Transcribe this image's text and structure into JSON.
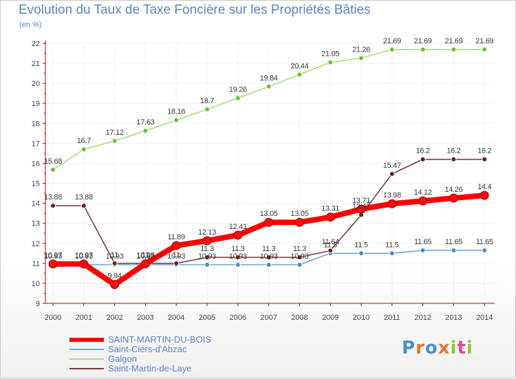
{
  "title": "Evolution du Taux de Taxe Foncière sur les Propriétés Bâties",
  "unit_label": "(en %)",
  "brand": {
    "text": "Proxiti",
    "letters": [
      "P",
      "r",
      "o",
      "x",
      "i",
      "t",
      "i"
    ],
    "colors": [
      "#4a8fd0",
      "#e8742a",
      "#8cc63f",
      "#e84a8a"
    ]
  },
  "chart_data": {
    "type": "line",
    "title": "Evolution du Taux de Taxe Foncière sur les Propriétés Bâties",
    "ylabel": "(en %)",
    "xlabel": "",
    "ylim": [
      9,
      22
    ],
    "yticks": [
      9,
      10,
      11,
      12,
      13,
      14,
      15,
      16,
      17,
      18,
      19,
      20,
      21,
      22
    ],
    "grid": true,
    "x": [
      "2000",
      "2001",
      "2002",
      "2003",
      "2004",
      "2005",
      "2006",
      "2007",
      "2008",
      "2009",
      "2010",
      "2011",
      "2012",
      "2013",
      "2014"
    ],
    "series": [
      {
        "name": "SAINT-MARTIN-DU-BOIS",
        "color": "#ff0000",
        "marker": "#ee1111",
        "emphasis": true,
        "values": [
          10.97,
          10.97,
          9.94,
          10.98,
          11.89,
          12.13,
          12.41,
          13.05,
          13.05,
          13.31,
          13.71,
          13.98,
          14.12,
          14.26,
          14.4
        ],
        "labels": [
          "10.97",
          "10.97",
          "9.94",
          "10.98",
          "11.89",
          "12.13",
          "12.41",
          "13.05",
          "13.05",
          "13.31",
          "13.71",
          "13.98",
          "14.12",
          "14.26",
          "14.4"
        ]
      },
      {
        "name": "Saint-Ciers-d'Abzac",
        "color": "#6fa6d6",
        "marker": "#4a8dc8",
        "emphasis": false,
        "values": [
          10.93,
          10.93,
          10.93,
          10.93,
          10.93,
          10.93,
          10.93,
          10.93,
          10.93,
          11.5,
          11.5,
          11.5,
          11.65,
          11.65,
          11.65
        ],
        "labels": [
          "10.93",
          "10.93",
          "10.93",
          "10.93",
          "10.93",
          "10.93",
          "10.93",
          "10.93",
          "10.93",
          "11.5",
          "11.5",
          "11.5",
          "11.65",
          "11.65",
          "11.65"
        ]
      },
      {
        "name": "Galgon",
        "color": "#a8dc7a",
        "marker": "#6cc02c",
        "emphasis": false,
        "values": [
          15.68,
          16.7,
          17.12,
          17.63,
          18.16,
          18.7,
          19.26,
          19.84,
          20.44,
          21.05,
          21.26,
          21.69,
          21.69,
          21.69,
          21.69
        ],
        "labels": [
          "15.68",
          "16.7",
          "17.12",
          "17.63",
          "18.16",
          "18.7",
          "19.26",
          "19.84",
          "20.44",
          "21.05",
          "21.26",
          "21.69",
          "21.69",
          "21.69",
          "21.69"
        ]
      },
      {
        "name": "Saint-Martin-de-Laye",
        "color": "#7a3a3a",
        "marker": "#6a1c1c",
        "emphasis": false,
        "values": [
          13.88,
          13.88,
          11.0,
          11.0,
          11.0,
          11.3,
          11.3,
          11.3,
          11.3,
          11.64,
          13.42,
          15.47,
          16.2,
          16.2,
          16.2
        ],
        "labels": [
          "13.88",
          "13.88",
          "11",
          "11",
          "11",
          "11.3",
          "11.3",
          "11.3",
          "11.3",
          "11.64",
          "13.42",
          "15.47",
          "16.2",
          "16.2",
          "16.2"
        ]
      }
    ]
  }
}
